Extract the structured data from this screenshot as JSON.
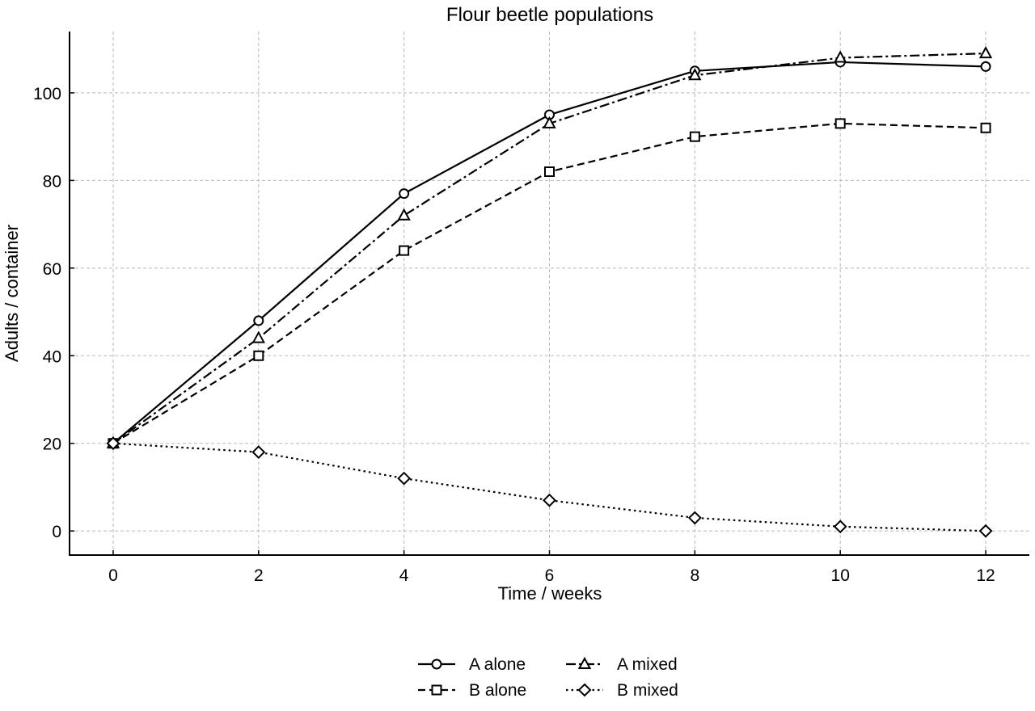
{
  "chart_data": {
    "type": "line",
    "title": "Flour beetle populations",
    "xlabel": "Time / weeks",
    "ylabel": "Adults / container",
    "x": [
      0,
      2,
      4,
      6,
      8,
      10,
      12
    ],
    "xlim": [
      -0.6,
      12.6
    ],
    "ylim": [
      -5.5,
      114
    ],
    "xticks": [
      "0",
      "2",
      "4",
      "6",
      "8",
      "10",
      "12"
    ],
    "yticks": [
      "0",
      "20",
      "40",
      "60",
      "80",
      "100"
    ],
    "grid": true,
    "legend_position": "bottom-center",
    "series": [
      {
        "name": "A alone",
        "values": [
          20,
          48,
          77,
          95,
          105,
          107,
          106
        ],
        "marker": "circle",
        "line": "solid",
        "color": "#000000"
      },
      {
        "name": "B alone",
        "values": [
          20,
          40,
          64,
          82,
          90,
          93,
          92
        ],
        "marker": "square",
        "line": "dashed",
        "color": "#000000"
      },
      {
        "name": "A mixed",
        "values": [
          20,
          44,
          72,
          93,
          104,
          108,
          109
        ],
        "marker": "triangle",
        "line": "dashdot",
        "color": "#000000"
      },
      {
        "name": "B mixed",
        "values": [
          20,
          18,
          12,
          7,
          3,
          1,
          0
        ],
        "marker": "diamond",
        "line": "dotted",
        "color": "#000000"
      }
    ]
  }
}
